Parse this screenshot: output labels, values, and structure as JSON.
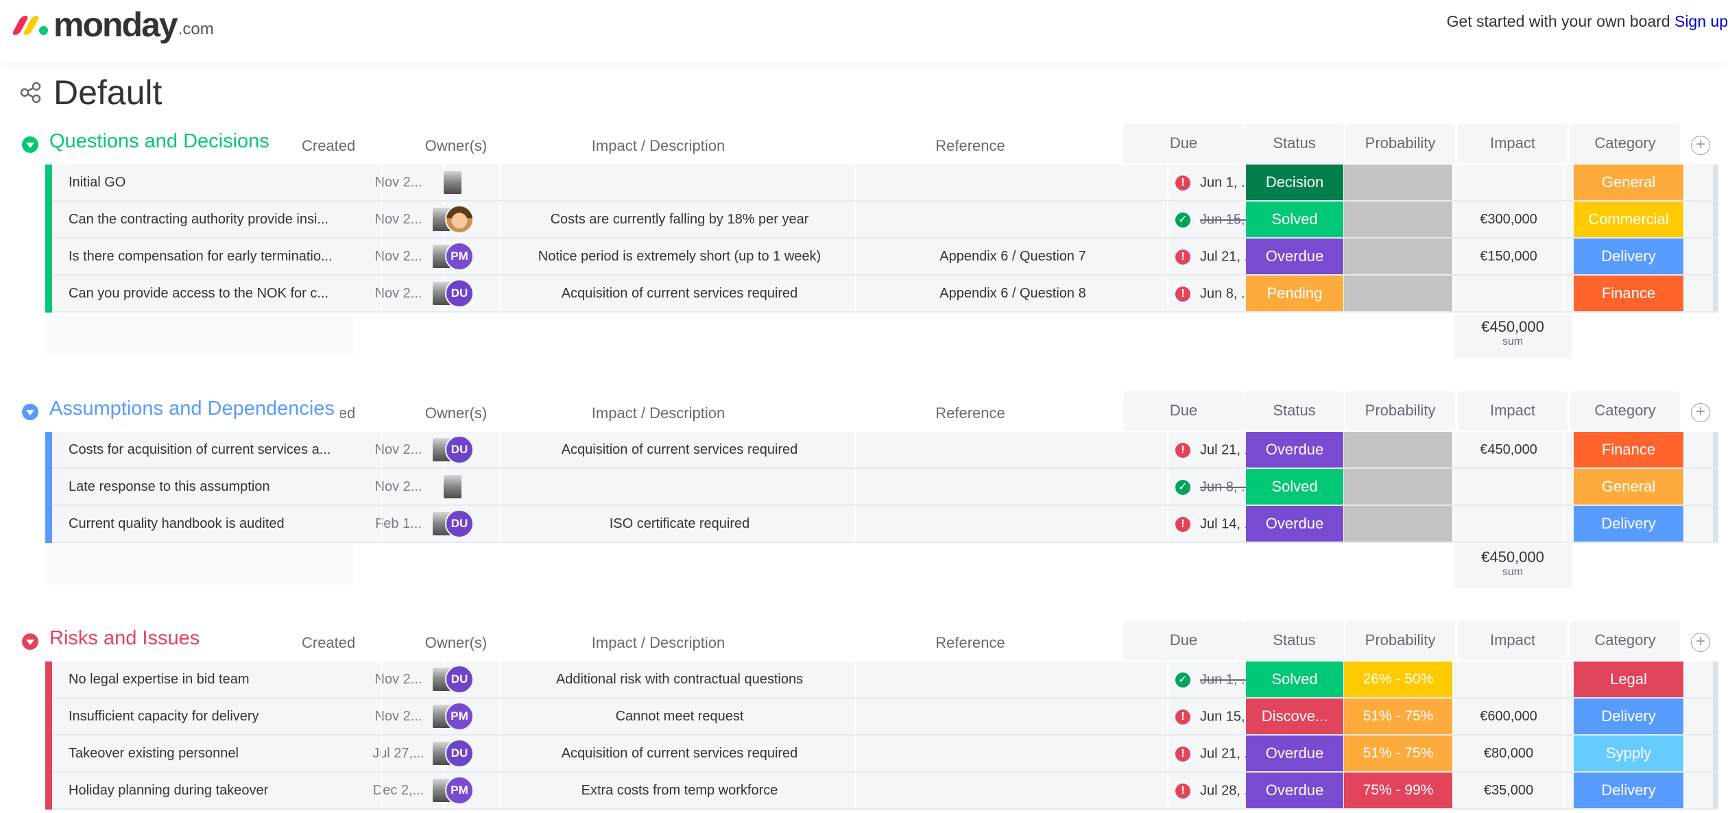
{
  "topbar": {
    "logo_text": "monday",
    "logo_domain": ".com",
    "cta_text": "Get started with your own board",
    "signup_label": "Sign up"
  },
  "board": {
    "title": "Default"
  },
  "columns": {
    "created": "Created",
    "owners": "Owner(s)",
    "description": "Impact / Description",
    "reference": "Reference",
    "due": "Due",
    "status": "Status",
    "probability": "Probability",
    "impact": "Impact",
    "category": "Category"
  },
  "colors": {
    "green_group": "#00c875",
    "blue_group": "#579bfc",
    "red_group": "#e2445c",
    "decision": "#037f4c",
    "solved": "#00c875",
    "overdue": "#784bd1",
    "pending": "#fdab3d",
    "discovered": "#e2445c",
    "general": "#fdab3d",
    "commercial": "#ffcb00",
    "delivery": "#579bfc",
    "finance": "#ff642e",
    "legal": "#e2445c",
    "sypply": "#66ccff"
  },
  "groups": [
    {
      "title": "Questions and Decisions",
      "rows": [
        {
          "name": "Initial GO",
          "created": "Nov 2...",
          "owners": [],
          "description": "",
          "reference": "",
          "due": "Jun 1, ...",
          "done": false,
          "status": "Decision",
          "probability": "",
          "impact": "",
          "category": "General"
        },
        {
          "name": "Can the contracting authority provide insi...",
          "created": "Nov 2...",
          "owners": [
            "face"
          ],
          "description": "Costs are currently falling by 18% per year",
          "reference": "",
          "due": "Jun 15,...",
          "done": true,
          "status": "Solved",
          "probability": "",
          "impact": "€300,000",
          "category": "Commercial"
        },
        {
          "name": "Is there compensation for early terminatio...",
          "created": "Nov 2...",
          "owners": [
            "PM"
          ],
          "description": "Notice period is extremely short (up to 1 week)",
          "reference": "Appendix 6 / Question 7",
          "due": "Jul 21, ...",
          "done": false,
          "status": "Overdue",
          "probability": "",
          "impact": "€150,000",
          "category": "Delivery"
        },
        {
          "name": "Can you provide access to the NOK for c...",
          "created": "Nov 2...",
          "owners": [
            "DU"
          ],
          "description": "Acquisition of current services required",
          "reference": "Appendix 6 / Question 8",
          "due": "Jun 8, ...",
          "done": false,
          "status": "Pending",
          "probability": "",
          "impact": "",
          "category": "Finance"
        }
      ],
      "sum": "€450,000",
      "sum_label": "sum"
    },
    {
      "title": "Assumptions and Dependencies",
      "rows": [
        {
          "name": "Costs for acquisition of current services a...",
          "created": "Nov 2...",
          "owners": [
            "DU"
          ],
          "description": "Acquisition of current services required",
          "reference": "",
          "due": "Jul 21, ...",
          "done": false,
          "status": "Overdue",
          "probability": "",
          "impact": "€450,000",
          "category": "Finance"
        },
        {
          "name": "Late response to this assumption",
          "created": "Nov 2...",
          "owners": [],
          "description": "",
          "reference": "",
          "due": "Jun 8, ...",
          "done": true,
          "status": "Solved",
          "probability": "",
          "impact": "",
          "category": "General"
        },
        {
          "name": "Current quality handbook is audited",
          "created": "Feb 1...",
          "owners": [
            "DU"
          ],
          "description": "ISO certificate required",
          "reference": "",
          "due": "Jul 14, ...",
          "done": false,
          "status": "Overdue",
          "probability": "",
          "impact": "",
          "category": "Delivery"
        }
      ],
      "sum": "€450,000",
      "sum_label": "sum"
    },
    {
      "title": "Risks and Issues",
      "rows": [
        {
          "name": "No legal expertise in bid team",
          "created": "Nov 2...",
          "owners": [
            "DU"
          ],
          "description": "Additional risk with contractual questions",
          "reference": "",
          "due": "Jun 1, ...",
          "done": true,
          "status": "Solved",
          "probability": "26% - 50%",
          "impact": "",
          "category": "Legal"
        },
        {
          "name": "Insufficient capacity for delivery",
          "created": "Nov 2...",
          "owners": [
            "PM"
          ],
          "description": "Cannot meet request",
          "reference": "",
          "due": "Jun 15,...",
          "done": false,
          "status": "Discove...",
          "probability": "51% - 75%",
          "impact": "€600,000",
          "category": "Delivery"
        },
        {
          "name": "Takeover existing personnel",
          "created": "Jul 27,...",
          "owners": [
            "DU"
          ],
          "description": "Acquisition of current services required",
          "reference": "",
          "due": "Jul 21, ...",
          "done": false,
          "status": "Overdue",
          "probability": "51% - 75%",
          "impact": "€80,000",
          "category": "Sypply"
        },
        {
          "name": "Holiday planning during takeover",
          "created": "Dec 2,...",
          "owners": [
            "PM"
          ],
          "description": "Extra costs from temp workforce",
          "reference": "",
          "due": "Jul 28, ...",
          "done": false,
          "status": "Overdue",
          "probability": "75% - 99%",
          "impact": "€35,000",
          "category": "Delivery"
        }
      ]
    }
  ]
}
